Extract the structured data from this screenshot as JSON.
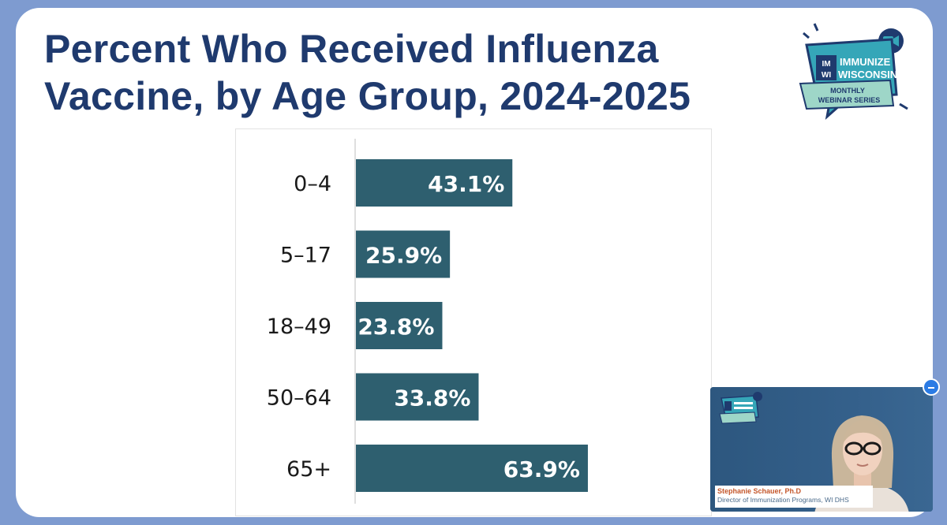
{
  "slide": {
    "title_line1": "Percent  Who Received Influenza",
    "title_line2": "Vaccine, by Age Group, 2024-2025"
  },
  "logo": {
    "badge": "IM WI",
    "line1": "IMMUNIZE",
    "line2": "WISCONSIN",
    "banner1": "MONTHLY",
    "banner2": "WEBINAR SERIES"
  },
  "chart_data": {
    "type": "bar",
    "orientation": "horizontal",
    "categories": [
      "0–4",
      "5–17",
      "18–49",
      "50–64",
      "65+"
    ],
    "values": [
      43.1,
      25.9,
      23.8,
      33.8,
      63.9
    ],
    "labels": [
      "43.1%",
      "25.9%",
      "23.8%",
      "33.8%",
      "63.9%"
    ],
    "unit": "%",
    "xlim": [
      0,
      100
    ],
    "grid": false,
    "legend": "none",
    "bar_color": "#2e5f6f",
    "label_color": "#ffffff"
  },
  "video": {
    "speaker_name": "Stephanie Schauer, Ph.D",
    "speaker_role": "Director of Immunization Programs, WI DHS",
    "minimize_icon": "minus-icon"
  },
  "colors": {
    "background": "#7e9bd0",
    "title": "#1f3a6e",
    "bar": "#2e5f6f",
    "logo_teal": "#35a6b8",
    "logo_banner": "#9ed6c8",
    "minimize": "#2b7be4"
  }
}
